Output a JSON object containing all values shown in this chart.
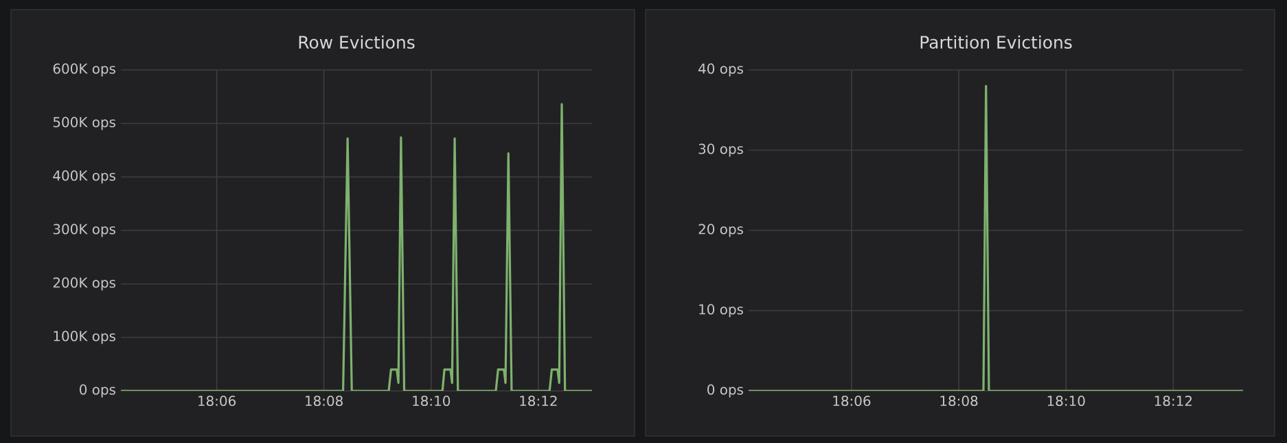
{
  "chart_data": [
    {
      "type": "line",
      "title": "Row Evictions",
      "grid": true,
      "marker": "none",
      "line_style": "solid",
      "x": [
        18.0702,
        18.1393,
        18.1407,
        18.142,
        18.1535,
        18.1542,
        18.156,
        18.1565,
        18.1573,
        18.1583,
        18.1702,
        18.1708,
        18.1727,
        18.1732,
        18.174,
        18.175,
        18.1868,
        18.1875,
        18.1893,
        18.1898,
        18.1907,
        18.1917,
        18.2035,
        18.2042,
        18.206,
        18.2065,
        18.2073,
        18.2083,
        18.2167
      ],
      "series": [
        {
          "color": "#7eb26d",
          "values": [
            0,
            0,
            472000,
            0,
            0,
            40000,
            40000,
            15000,
            474000,
            0,
            0,
            40000,
            40000,
            15000,
            472000,
            0,
            0,
            40000,
            40000,
            15000,
            444000,
            0,
            0,
            40000,
            40000,
            15000,
            536000,
            0,
            0
          ]
        }
      ],
      "xlim": [
        18.0702,
        18.2167
      ],
      "ylim": [
        0,
        600000
      ],
      "xticks": [
        {
          "value": 18.1,
          "label": "18:06"
        },
        {
          "value": 18.13333,
          "label": "18:08"
        },
        {
          "value": 18.16667,
          "label": "18:10"
        },
        {
          "value": 18.2,
          "label": "18:12"
        }
      ],
      "yticks": [
        {
          "value": 0,
          "label": "0 ops"
        },
        {
          "value": 100000,
          "label": "100K ops"
        },
        {
          "value": 200000,
          "label": "200K ops"
        },
        {
          "value": 300000,
          "label": "300K ops"
        },
        {
          "value": 400000,
          "label": "400K ops"
        },
        {
          "value": 500000,
          "label": "500K ops"
        },
        {
          "value": 600000,
          "label": "600K ops"
        }
      ]
    },
    {
      "type": "line",
      "title": "Partition Evictions",
      "grid": true,
      "marker": "none",
      "line_style": "solid",
      "x": [
        18.068,
        18.141,
        18.1418,
        18.1427,
        18.2217
      ],
      "series": [
        {
          "color": "#7eb26d",
          "values": [
            0,
            0,
            38,
            0,
            0
          ]
        }
      ],
      "xlim": [
        18.068,
        18.2217
      ],
      "ylim": [
        0,
        40
      ],
      "xticks": [
        {
          "value": 18.1,
          "label": "18:06"
        },
        {
          "value": 18.13333,
          "label": "18:08"
        },
        {
          "value": 18.16667,
          "label": "18:10"
        },
        {
          "value": 18.2,
          "label": "18:12"
        }
      ],
      "yticks": [
        {
          "value": 0,
          "label": "0 ops"
        },
        {
          "value": 10,
          "label": "10 ops"
        },
        {
          "value": 20,
          "label": "20 ops"
        },
        {
          "value": 30,
          "label": "30 ops"
        },
        {
          "value": 40,
          "label": "40 ops"
        }
      ]
    }
  ]
}
